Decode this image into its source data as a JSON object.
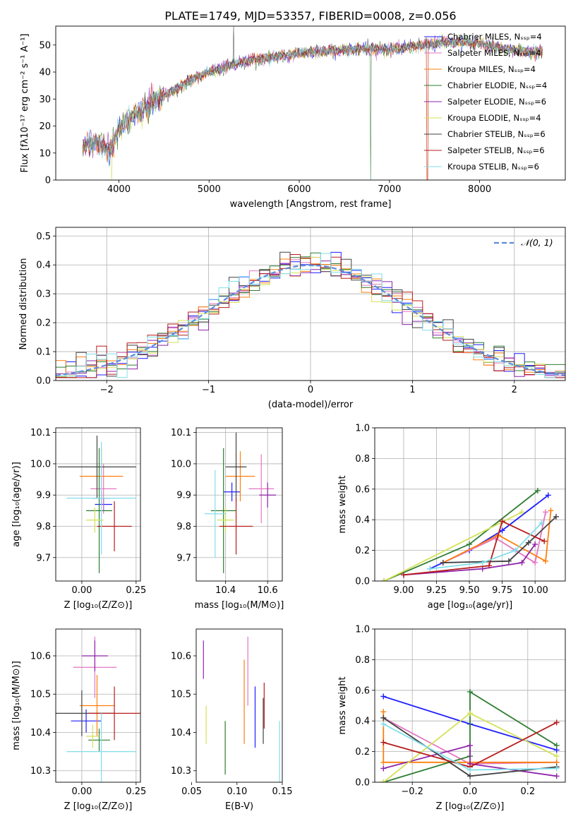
{
  "figure_title": "PLATE=1749, MJD=53357, FIBERID=0008, z=0.056",
  "colors": [
    "#1f1fff",
    "#e377c2",
    "#ff7f0e",
    "#2e7d32",
    "#8e24aa",
    "#d4e157",
    "#424242",
    "#b71c1c",
    "#80deea"
  ],
  "chart_data": [
    {
      "id": "spectrum",
      "type": "line",
      "title": "PLATE=1749, MJD=53357, FIBERID=0008, z=0.056",
      "xlabel": "wavelength [Angstrom, rest frame]",
      "ylabel": "Flux [fλ10⁻¹⁷ erg cm⁻² s⁻¹ A⁻¹]",
      "xlim": [
        3300,
        8950
      ],
      "ylim": [
        0,
        57
      ],
      "xticks": [
        4000,
        5000,
        6000,
        7000,
        8000
      ],
      "yticks": [
        0,
        10,
        20,
        30,
        40,
        50
      ],
      "grid": false,
      "legend_position": "right",
      "series_names": [
        "Chabrier MILES, Nₛₛₚ=4",
        "Salpeter MILES, Nₛₛₚ=4",
        "Kroupa MILES, Nₛₛₚ=4",
        "Chabrier ELODIE, Nₛₛₚ=4",
        "Salpeter ELODIE, Nₛₛₚ=6",
        "Kroupa ELODIE, Nₛₛₚ=4",
        "Chabrier STELIB, Nₛₛₚ=6",
        "Salpeter STELIB, Nₛₛₚ=6",
        "Kroupa STELIB, Nₛₛₚ=6"
      ],
      "data_envelope": {
        "x": [
          3600,
          3750,
          3900,
          4000,
          4200,
          4400,
          4600,
          4800,
          5000,
          5200,
          5400,
          5600,
          5800,
          6000,
          6200,
          6400,
          6600,
          6800,
          7000,
          7200,
          7400,
          7600,
          7800,
          8000,
          8200,
          8400,
          8600,
          8700
        ],
        "y": [
          13,
          14,
          11,
          19,
          25,
          29,
          33,
          37,
          40,
          42,
          44,
          45,
          46,
          47,
          47.5,
          48,
          48.5,
          48.5,
          48.5,
          49,
          50,
          51,
          51,
          50.5,
          49,
          48,
          47,
          48
        ]
      }
    },
    {
      "id": "residuals",
      "type": "histogram",
      "xlabel": "(data-model)/error",
      "ylabel": "Normed distribution",
      "xlim": [
        -2.5,
        2.5
      ],
      "ylim": [
        0,
        0.53
      ],
      "xticks": [
        -2,
        -1,
        0,
        1,
        2
      ],
      "yticks": [
        0.0,
        0.1,
        0.2,
        0.3,
        0.4,
        0.5
      ],
      "grid": true,
      "legend_position": "top-right",
      "legend_label": "𝒩(0, 1)",
      "bin_width": 0.1,
      "bin_start": -2.5,
      "reference_curve": "standard normal"
    },
    {
      "id": "age_vs_Z",
      "type": "scatter-errorbar",
      "xlabel": "Z [log₁₀(Z/Z⊙)]",
      "ylabel": "age  [log₁₀(age/yr)]",
      "xlim": [
        -0.12,
        0.27
      ],
      "ylim": [
        9.625,
        10.115
      ],
      "xticks": [
        0.0,
        0.25
      ],
      "yticks": [
        9.7,
        9.8,
        9.9,
        10.0,
        10.1
      ],
      "grid": true,
      "points": [
        {
          "x": 0.1,
          "xerr": 0.04,
          "y": 9.87,
          "yerr": 0.02
        },
        {
          "x": 0.1,
          "xerr": 0.06,
          "y": 9.92,
          "yerr": 0.08
        },
        {
          "x": 0.09,
          "xerr": 0.1,
          "y": 9.96,
          "yerr": 0.09
        },
        {
          "x": 0.08,
          "xerr": 0.06,
          "y": 9.85,
          "yerr": 0.2
        },
        {
          "x": 0.09,
          "xerr": 0.04,
          "y": 9.89,
          "yerr": 0.02
        },
        {
          "x": 0.06,
          "xerr": 0.04,
          "y": 9.82,
          "yerr": 0.04
        },
        {
          "x": 0.07,
          "xerr": 0.18,
          "y": 9.99,
          "yerr": 0.1
        },
        {
          "x": 0.15,
          "xerr": 0.08,
          "y": 9.8,
          "yerr": 0.08
        },
        {
          "x": 0.09,
          "xerr": 0.16,
          "y": 9.89,
          "yerr": 0.18
        }
      ]
    },
    {
      "id": "age_vs_mass",
      "type": "scatter-errorbar",
      "xlabel": "mass [log₁₀(M/M⊙)]",
      "ylabel": "",
      "xlim": [
        10.26,
        10.67
      ],
      "ylim": [
        9.625,
        10.115
      ],
      "xticks": [
        10.4,
        10.6
      ],
      "yticks": [
        9.7,
        9.8,
        9.9,
        10.0,
        10.1
      ],
      "grid": true,
      "points": [
        {
          "x": 10.43,
          "xerr": 0.04,
          "y": 9.91,
          "yerr": 0.03
        },
        {
          "x": 10.57,
          "xerr": 0.06,
          "y": 9.92,
          "yerr": 0.11
        },
        {
          "x": 10.47,
          "xerr": 0.07,
          "y": 9.96,
          "yerr": 0.08
        },
        {
          "x": 10.39,
          "xerr": 0.06,
          "y": 9.85,
          "yerr": 0.2
        },
        {
          "x": 10.6,
          "xerr": 0.04,
          "y": 9.9,
          "yerr": 0.04
        },
        {
          "x": 10.4,
          "xerr": 0.04,
          "y": 9.82,
          "yerr": 0.04
        },
        {
          "x": 10.45,
          "xerr": 0.05,
          "y": 9.99,
          "yerr": 0.11
        },
        {
          "x": 10.45,
          "xerr": 0.08,
          "y": 9.8,
          "yerr": 0.09
        },
        {
          "x": 10.35,
          "xerr": 0.05,
          "y": 9.84,
          "yerr": 0.14
        }
      ]
    },
    {
      "id": "weight_vs_age",
      "type": "line",
      "xlabel": "age  [log₁₀(age/yr)]",
      "ylabel": "mass weight",
      "xlim": [
        8.78,
        10.23
      ],
      "ylim": [
        0,
        1.0
      ],
      "xticks": [
        9.0,
        9.25,
        9.5,
        9.75,
        10.0
      ],
      "yticks": [
        0.0,
        0.2,
        0.4,
        0.6,
        0.8,
        1.0
      ],
      "grid": true,
      "series": [
        {
          "x": [
            9.2,
            9.5,
            9.75,
            10.1
          ],
          "y": [
            0.08,
            0.2,
            0.33,
            0.56
          ]
        },
        {
          "x": [
            9.3,
            9.7,
            10.0,
            10.08
          ],
          "y": [
            0.12,
            0.28,
            0.12,
            0.45
          ]
        },
        {
          "x": [
            9.3,
            9.72,
            10.08,
            10.12
          ],
          "y": [
            0.12,
            0.3,
            0.13,
            0.46
          ]
        },
        {
          "x": [
            8.85,
            9.5,
            10.02
          ],
          "y": [
            0.0,
            0.24,
            0.59
          ]
        },
        {
          "x": [
            9.0,
            9.6,
            9.9,
            10.0
          ],
          "y": [
            0.04,
            0.08,
            0.12,
            0.24
          ]
        },
        {
          "x": [
            8.85,
            9.9
          ],
          "y": [
            0.0,
            0.45
          ]
        },
        {
          "x": [
            9.3,
            9.8,
            9.95,
            10.16
          ],
          "y": [
            0.12,
            0.13,
            0.25,
            0.42
          ]
        },
        {
          "x": [
            9.0,
            9.65,
            9.75,
            10.07
          ],
          "y": [
            0.04,
            0.1,
            0.39,
            0.26
          ]
        },
        {
          "x": [
            9.2,
            9.6,
            9.85,
            10.05
          ],
          "y": [
            0.08,
            0.12,
            0.2,
            0.38
          ]
        }
      ]
    },
    {
      "id": "mass_vs_Z",
      "type": "scatter-errorbar",
      "xlabel": "Z [log₁₀(Z/Z⊙)]",
      "ylabel": "mass [log₁₀(M/M⊙)]",
      "xlim": [
        -0.12,
        0.27
      ],
      "ylim": [
        10.27,
        10.67
      ],
      "xticks": [
        0.0,
        0.25
      ],
      "yticks": [
        10.3,
        10.4,
        10.5,
        10.6
      ],
      "grid": true,
      "points": [
        {
          "x": 0.02,
          "xerr": 0.07,
          "y": 10.43,
          "yerr": 0.03
        },
        {
          "x": 0.06,
          "xerr": 0.1,
          "y": 10.57,
          "yerr": 0.08
        },
        {
          "x": 0.07,
          "xerr": 0.08,
          "y": 10.47,
          "yerr": 0.08
        },
        {
          "x": 0.08,
          "xerr": 0.05,
          "y": 10.38,
          "yerr": 0.03
        },
        {
          "x": 0.06,
          "xerr": 0.06,
          "y": 10.6,
          "yerr": 0.04
        },
        {
          "x": 0.05,
          "xerr": 0.03,
          "y": 10.39,
          "yerr": 0.03
        },
        {
          "x": 0.0,
          "xerr": 0.15,
          "y": 10.45,
          "yerr": 0.06
        },
        {
          "x": 0.15,
          "xerr": 0.12,
          "y": 10.45,
          "yerr": 0.07
        },
        {
          "x": 0.09,
          "xerr": 0.16,
          "y": 10.35,
          "yerr": 0.1
        }
      ]
    },
    {
      "id": "mass_vs_ebv",
      "type": "errorbar",
      "xlabel": "E(B-V)",
      "ylabel": "",
      "xlim": [
        0.055,
        0.15
      ],
      "ylim": [
        10.27,
        10.67
      ],
      "xticks": [
        0.05,
        0.1,
        0.15
      ],
      "yticks": [
        10.3,
        10.4,
        10.5,
        10.6
      ],
      "grid": false,
      "points": [
        {
          "x": 0.12,
          "y": 10.44,
          "yerr": 0.08
        },
        {
          "x": 0.112,
          "y": 10.56,
          "yerr": 0.09
        },
        {
          "x": 0.108,
          "y": 10.48,
          "yerr": 0.11
        },
        {
          "x": 0.087,
          "y": 10.36,
          "yerr": 0.07
        },
        {
          "x": 0.063,
          "y": 10.59,
          "yerr": 0.05
        },
        {
          "x": 0.066,
          "y": 10.42,
          "yerr": 0.05
        },
        {
          "x": 0.129,
          "y": 10.43,
          "yerr": 0.06
        },
        {
          "x": 0.13,
          "y": 10.47,
          "yerr": 0.06
        },
        {
          "x": 0.147,
          "y": 10.35,
          "yerr": 0.08
        }
      ]
    },
    {
      "id": "weight_vs_Z",
      "type": "line",
      "xlabel": "Z [log₁₀(Z/Z⊙)]",
      "ylabel": "mass weight",
      "xlim": [
        -0.33,
        0.33
      ],
      "ylim": [
        0,
        1.0
      ],
      "xticks": [
        -0.2,
        0.0,
        0.2
      ],
      "yticks": [
        0.0,
        0.2,
        0.4,
        0.6,
        0.8,
        1.0
      ],
      "grid": true,
      "series": [
        {
          "x": [
            -0.3,
            0.0,
            0.3
          ],
          "y": [
            0.56,
            0.38,
            0.21
          ]
        },
        {
          "x": [
            -0.3,
            0.0,
            0.3
          ],
          "y": [
            0.42,
            0.12,
            0.13
          ]
        },
        {
          "x": [
            -0.3,
            -0.3,
            0.3
          ],
          "y": [
            0.46,
            0.13,
            0.13
          ]
        },
        {
          "x": [
            -0.3,
            0.0,
            0.0,
            0.3
          ],
          "y": [
            0.0,
            0.17,
            0.59,
            0.24
          ]
        },
        {
          "x": [
            -0.3,
            0.0,
            0.0,
            0.3
          ],
          "y": [
            0.09,
            0.24,
            0.12,
            0.04
          ]
        },
        {
          "x": [
            -0.3,
            0.0,
            0.3
          ],
          "y": [
            0.0,
            0.45,
            0.17
          ]
        },
        {
          "x": [
            -0.3,
            0.0,
            0.3
          ],
          "y": [
            0.42,
            0.04,
            0.1
          ]
        },
        {
          "x": [
            -0.3,
            0.0,
            0.3
          ],
          "y": [
            0.26,
            0.1,
            0.39
          ]
        },
        {
          "x": [
            -0.3,
            0.0,
            0.3
          ],
          "y": [
            0.38,
            0.08,
            0.09
          ]
        }
      ]
    }
  ]
}
